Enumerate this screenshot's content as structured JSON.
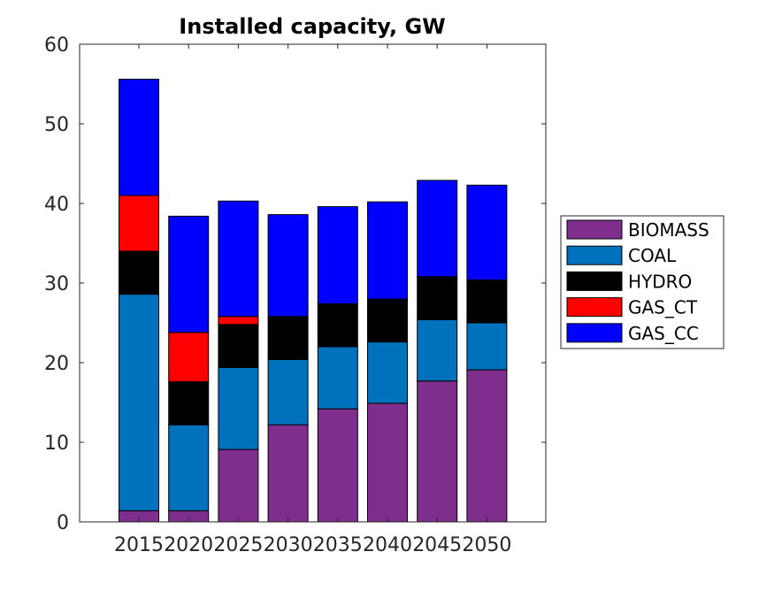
{
  "chart_data": {
    "type": "bar",
    "stacked": true,
    "title": "Installed capacity, GW",
    "xlabel": "",
    "ylabel": "",
    "categories": [
      "2015",
      "2020",
      "2025",
      "2030",
      "2035",
      "2040",
      "2045",
      "2050"
    ],
    "ylim": [
      0,
      60
    ],
    "yticks": [
      "0",
      "10",
      "20",
      "30",
      "40",
      "50",
      "60"
    ],
    "grid": false,
    "legend_position": "right",
    "series": [
      {
        "name": "BIOMASS",
        "color": "#7E2F8E",
        "values": [
          1.4,
          1.4,
          9.1,
          12.2,
          14.2,
          14.9,
          17.7,
          19.1
        ]
      },
      {
        "name": "COAL",
        "color": "#0072BD",
        "values": [
          27.2,
          10.8,
          10.3,
          8.2,
          7.8,
          7.7,
          7.7,
          5.9
        ]
      },
      {
        "name": "HYDRO",
        "color": "#000000",
        "values": [
          5.4,
          5.4,
          5.4,
          5.4,
          5.4,
          5.4,
          5.4,
          5.4
        ]
      },
      {
        "name": "GAS_CT",
        "color": "#FF0000",
        "values": [
          7.0,
          6.2,
          1.0,
          0,
          0,
          0,
          0,
          0
        ]
      },
      {
        "name": "GAS_CC",
        "color": "#0000FF",
        "values": [
          14.6,
          14.6,
          14.5,
          12.8,
          12.2,
          12.2,
          12.1,
          11.9
        ]
      }
    ]
  }
}
